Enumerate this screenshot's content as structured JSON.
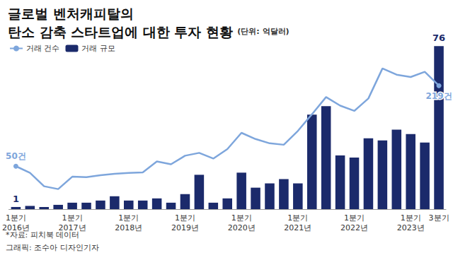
{
  "chart_data": {
    "type": "bar",
    "title": "글로벌 벤처캐피탈의\n탄소 감축 스타트업에 대한 투자 현황",
    "subtitle": "(단위: 억달러)",
    "notes": [
      "*자료: 피치북 데이터",
      "그래픽: 조수아 디자인기자"
    ],
    "categories": [
      "1분기\n2016년",
      null,
      null,
      null,
      "1분기\n2017년",
      null,
      null,
      null,
      "1분기\n2018년",
      null,
      null,
      null,
      "1분기\n2019년",
      null,
      null,
      null,
      "1분기\n2020년",
      null,
      null,
      null,
      "1분기\n2021년",
      null,
      null,
      null,
      "1분기\n2022년",
      null,
      null,
      null,
      "1분기\n2023년",
      null,
      "3분기"
    ],
    "series": [
      {
        "name": "거래 건수",
        "type": "line",
        "axis": "y2",
        "color": "#7ea6dc",
        "values": [
          50,
          36,
          8,
          2,
          28,
          27,
          31,
          34,
          36,
          37,
          60,
          54,
          72,
          78,
          66,
          86,
          120,
          107,
          98,
          95,
          124,
          159,
          195,
          177,
          166,
          192,
          255,
          242,
          237,
          248,
          219
        ]
      },
      {
        "name": "거래 규모",
        "type": "bar",
        "color": "#1b2a6b",
        "values": [
          1,
          1.5,
          1,
          2,
          3,
          3,
          4,
          6,
          4,
          4,
          5,
          3,
          7,
          16,
          3,
          5,
          17,
          10,
          12,
          14,
          12,
          44,
          48,
          25,
          24,
          33,
          32,
          37,
          35,
          31,
          76
        ]
      }
    ],
    "annotations": [
      {
        "series": "거래 건수",
        "index": 0,
        "text": "50건"
      },
      {
        "series": "거래 건수",
        "index": 30,
        "text": "219건"
      },
      {
        "series": "거래 규모",
        "index": 0,
        "text": "1"
      },
      {
        "series": "거래 규모",
        "index": 30,
        "text": "76"
      }
    ],
    "ylim": [
      0,
      80
    ],
    "yticks": [
      0,
      20,
      40,
      60,
      80
    ],
    "y2lim": [
      -40,
      320
    ],
    "y2ticks": [
      -40,
      0,
      40,
      80,
      120,
      160,
      200,
      240,
      280,
      320
    ],
    "tick_labels": false,
    "grid": false,
    "legend": "top-left"
  }
}
